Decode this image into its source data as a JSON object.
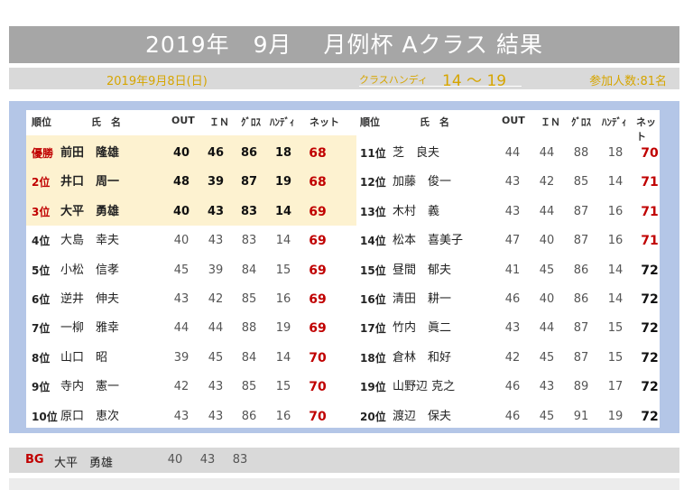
{
  "title": "2019年　9月　 月例杯 Aクラス 結果",
  "date": "2019年9月8日(日)",
  "class_label": "クラスハンディ",
  "class_range": "14 ～ 19",
  "participants": "参加人数:81名",
  "headers": {
    "rank": "順位",
    "name": "氏　名",
    "out": "OUT",
    "in": "ＩＮ",
    "gross": "ｸﾞﾛｽ",
    "handi": "ﾊﾝﾃﾞｨ",
    "net": "ネット"
  },
  "left_rows": [
    {
      "rank": "優勝",
      "name": "前田　隆雄",
      "out": "40",
      "in": "46",
      "gross": "86",
      "handi": "18",
      "net": "68"
    },
    {
      "rank": "2位",
      "name": "井口　周一",
      "out": "48",
      "in": "39",
      "gross": "87",
      "handi": "19",
      "net": "68"
    },
    {
      "rank": "3位",
      "name": "大平　勇雄",
      "out": "40",
      "in": "43",
      "gross": "83",
      "handi": "14",
      "net": "69"
    },
    {
      "rank": "4位",
      "name": "大島　幸夫",
      "out": "40",
      "in": "43",
      "gross": "83",
      "handi": "14",
      "net": "69"
    },
    {
      "rank": "5位",
      "name": "小松　信孝",
      "out": "45",
      "in": "39",
      "gross": "84",
      "handi": "15",
      "net": "69"
    },
    {
      "rank": "6位",
      "name": "逆井　伸夫",
      "out": "43",
      "in": "42",
      "gross": "85",
      "handi": "16",
      "net": "69"
    },
    {
      "rank": "7位",
      "name": "一柳　雅幸",
      "out": "44",
      "in": "44",
      "gross": "88",
      "handi": "19",
      "net": "69"
    },
    {
      "rank": "8位",
      "name": "山口　昭",
      "out": "39",
      "in": "45",
      "gross": "84",
      "handi": "14",
      "net": "70"
    },
    {
      "rank": "9位",
      "name": "寺内　憲一",
      "out": "42",
      "in": "43",
      "gross": "85",
      "handi": "15",
      "net": "70"
    },
    {
      "rank": "10位",
      "name": "原口　恵次",
      "out": "43",
      "in": "43",
      "gross": "86",
      "handi": "16",
      "net": "70"
    }
  ],
  "right_rows": [
    {
      "rank": "11位",
      "name": "芝　良夫",
      "out": "44",
      "in": "44",
      "gross": "88",
      "handi": "18",
      "net": "70"
    },
    {
      "rank": "12位",
      "name": "加藤　俊一",
      "out": "43",
      "in": "42",
      "gross": "85",
      "handi": "14",
      "net": "71"
    },
    {
      "rank": "13位",
      "name": "木村　義",
      "out": "43",
      "in": "44",
      "gross": "87",
      "handi": "16",
      "net": "71"
    },
    {
      "rank": "14位",
      "name": "松本　喜美子",
      "out": "47",
      "in": "40",
      "gross": "87",
      "handi": "16",
      "net": "71"
    },
    {
      "rank": "15位",
      "name": "昼間　郁夫",
      "out": "41",
      "in": "45",
      "gross": "86",
      "handi": "14",
      "net": "72"
    },
    {
      "rank": "16位",
      "name": "清田　耕一",
      "out": "46",
      "in": "40",
      "gross": "86",
      "handi": "14",
      "net": "72"
    },
    {
      "rank": "17位",
      "name": "竹内　眞二",
      "out": "43",
      "in": "44",
      "gross": "87",
      "handi": "15",
      "net": "72"
    },
    {
      "rank": "18位",
      "name": "倉林　和好",
      "out": "42",
      "in": "45",
      "gross": "87",
      "handi": "15",
      "net": "72"
    },
    {
      "rank": "19位",
      "name": "山野辺 克之",
      "out": "46",
      "in": "43",
      "gross": "89",
      "handi": "17",
      "net": "72"
    },
    {
      "rank": "20位",
      "name": "渡辺　保夫",
      "out": "46",
      "in": "45",
      "gross": "91",
      "handi": "19",
      "net": "72"
    }
  ],
  "best_gross": {
    "label": "BG",
    "name": "大平　勇雄",
    "out": "40",
    "in": "43",
    "gross": "83"
  },
  "colors": {
    "red": "#c00000",
    "gold": "#d6a500",
    "panel": "#b4c6e7",
    "highlight": "#fdf2d0"
  }
}
